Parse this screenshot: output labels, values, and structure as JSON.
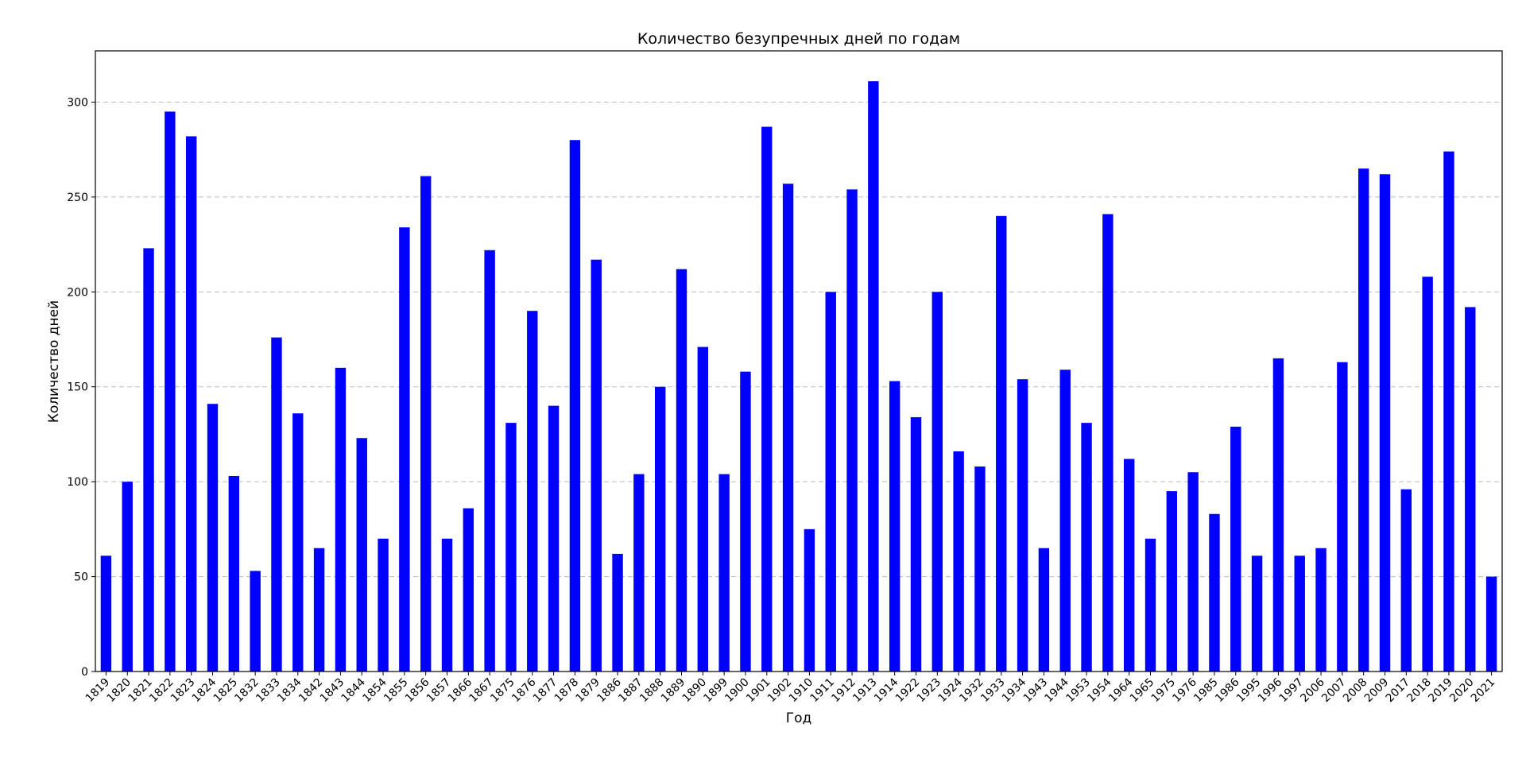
{
  "chart_data": {
    "type": "bar",
    "title": "Количество безупречных дней по годам",
    "xlabel": "Год",
    "ylabel": "Количество дней",
    "categories": [
      "1819",
      "1820",
      "1821",
      "1822",
      "1823",
      "1824",
      "1825",
      "1832",
      "1833",
      "1834",
      "1842",
      "1843",
      "1844",
      "1854",
      "1855",
      "1856",
      "1857",
      "1866",
      "1867",
      "1875",
      "1876",
      "1877",
      "1878",
      "1879",
      "1886",
      "1887",
      "1888",
      "1889",
      "1890",
      "1899",
      "1900",
      "1901",
      "1902",
      "1910",
      "1911",
      "1912",
      "1913",
      "1914",
      "1922",
      "1923",
      "1924",
      "1932",
      "1933",
      "1934",
      "1943",
      "1944",
      "1953",
      "1954",
      "1964",
      "1965",
      "1975",
      "1976",
      "1985",
      "1986",
      "1995",
      "1996",
      "1997",
      "2006",
      "2007",
      "2008",
      "2009",
      "2017",
      "2018",
      "2019",
      "2020",
      "2021"
    ],
    "values": [
      61,
      100,
      223,
      295,
      282,
      141,
      103,
      53,
      176,
      136,
      65,
      160,
      123,
      70,
      234,
      261,
      70,
      86,
      222,
      131,
      190,
      140,
      280,
      217,
      62,
      104,
      150,
      212,
      171,
      104,
      158,
      287,
      257,
      75,
      200,
      254,
      311,
      153,
      134,
      200,
      116,
      108,
      240,
      154,
      65,
      159,
      131,
      241,
      112,
      70,
      95,
      105,
      83,
      129,
      61,
      165,
      61,
      65,
      163,
      265,
      262,
      96,
      208,
      274,
      192,
      50
    ],
    "ylim": [
      0,
      327
    ],
    "yticks": [
      0,
      50,
      100,
      150,
      200,
      250,
      300
    ],
    "grid": "y",
    "bar_color": "#0000ff"
  }
}
